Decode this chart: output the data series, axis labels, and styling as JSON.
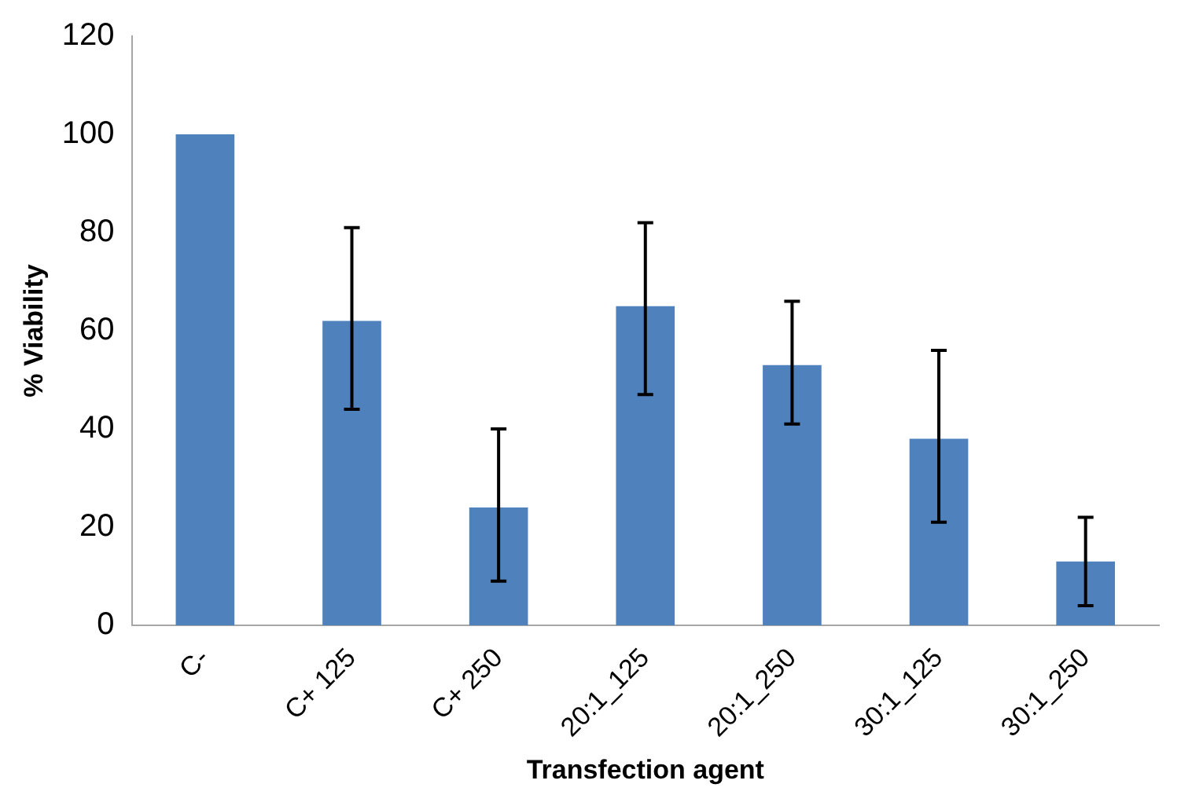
{
  "chart_data": {
    "type": "bar",
    "xlabel": "Transfection agent",
    "ylabel": "% Viability",
    "categories": [
      "C-",
      "C+ 125",
      "C+ 250",
      "20:1_125",
      "20:1_250",
      "30:1_125",
      "30:1_250"
    ],
    "values": [
      100,
      62,
      24,
      65,
      53,
      38,
      13
    ],
    "errors": [
      null,
      [
        44,
        81
      ],
      [
        9,
        40
      ],
      [
        47,
        82
      ],
      [
        41,
        66
      ],
      [
        21,
        56
      ],
      [
        4,
        22
      ]
    ],
    "color": "#4f81bd",
    "ylim": [
      0,
      120
    ],
    "yticks": [
      0,
      20,
      40,
      60,
      80,
      100,
      120
    ],
    "grid": false,
    "legend": false
  }
}
